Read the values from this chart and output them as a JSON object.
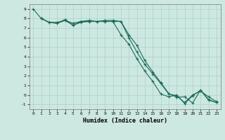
{
  "xlabel": "Humidex (Indice chaleur)",
  "xlim": [
    -0.5,
    23.5
  ],
  "ylim": [
    -1.5,
    9.5
  ],
  "yticks": [
    -1,
    0,
    1,
    2,
    3,
    4,
    5,
    6,
    7,
    8,
    9
  ],
  "xticks": [
    0,
    1,
    2,
    3,
    4,
    5,
    6,
    7,
    8,
    9,
    10,
    11,
    12,
    13,
    14,
    15,
    16,
    17,
    18,
    19,
    20,
    21,
    22,
    23
  ],
  "line_color": "#1a6b5a",
  "bg_color": "#cde8e0",
  "grid_color": "#aad0c8",
  "line1_x": [
    0,
    1,
    2,
    3,
    4,
    5,
    6,
    7,
    8,
    9,
    10,
    11,
    12,
    13,
    14,
    15,
    16,
    17,
    18,
    19,
    20,
    21,
    22,
    23
  ],
  "line1_y": [
    9.0,
    8.0,
    7.6,
    7.5,
    7.8,
    7.3,
    7.7,
    7.7,
    7.7,
    7.7,
    7.7,
    6.3,
    5.3,
    3.8,
    2.5,
    1.4,
    0.1,
    -0.2,
    0.0,
    -0.9,
    -0.1,
    0.5,
    -0.5,
    -0.8
  ],
  "line2_x": [
    1,
    2,
    3,
    4,
    5,
    6,
    7,
    8,
    9,
    10,
    11,
    12,
    13,
    14,
    15,
    16,
    17,
    18,
    19,
    20,
    21,
    22,
    23
  ],
  "line2_y": [
    8.0,
    7.6,
    7.6,
    7.8,
    7.5,
    7.7,
    7.8,
    7.7,
    7.8,
    7.8,
    7.7,
    6.0,
    4.5,
    3.2,
    2.2,
    1.2,
    0.1,
    -0.1,
    -0.8,
    0.0,
    0.4,
    -0.2,
    -0.7
  ],
  "line3_x": [
    1,
    2,
    3,
    4,
    5,
    6,
    7,
    8,
    9,
    10,
    11,
    12,
    13,
    14,
    15,
    16,
    17,
    18,
    19,
    20,
    21,
    22,
    23
  ],
  "line3_y": [
    8.0,
    7.6,
    7.5,
    7.9,
    7.3,
    7.6,
    7.7,
    7.7,
    7.7,
    7.7,
    7.7,
    6.3,
    5.2,
    3.6,
    2.4,
    1.3,
    0.15,
    -0.25,
    -0.2,
    -0.85,
    0.5,
    -0.55,
    -0.8
  ]
}
